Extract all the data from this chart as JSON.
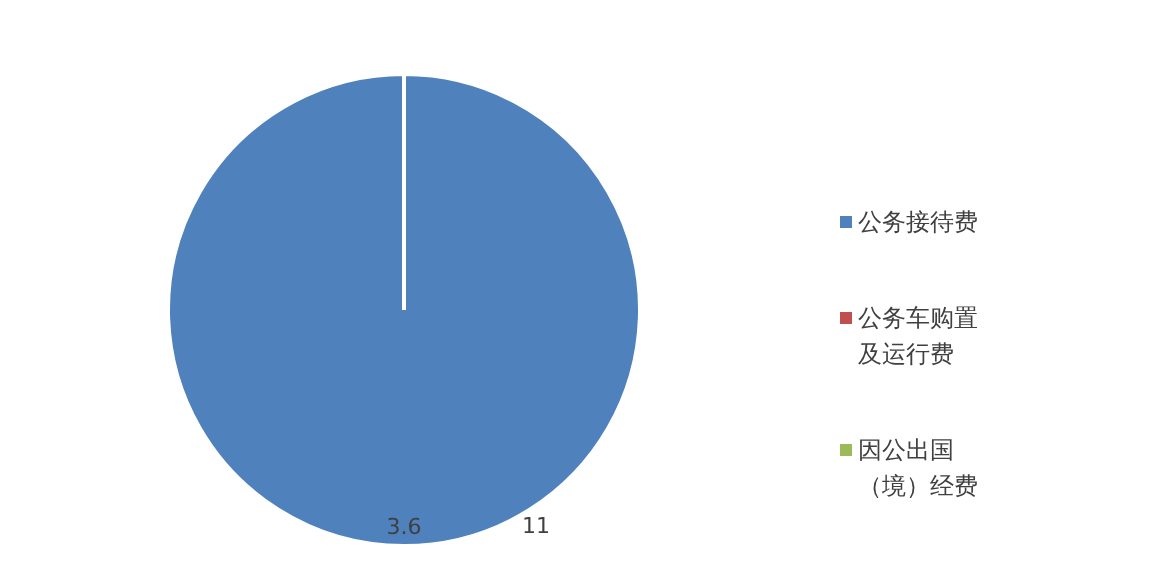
{
  "chart_data": {
    "type": "pie",
    "categories": [
      "公务接待费",
      "公务车购置及运行费",
      "因公出国（境）经费"
    ],
    "values": [
      3.6,
      0,
      0
    ],
    "colors": [
      "#4f81bd",
      "#c0504d",
      "#9bbb59"
    ],
    "value_labels": [
      "3.6",
      null,
      null
    ],
    "annotations": [
      "11"
    ],
    "legend": "right"
  }
}
